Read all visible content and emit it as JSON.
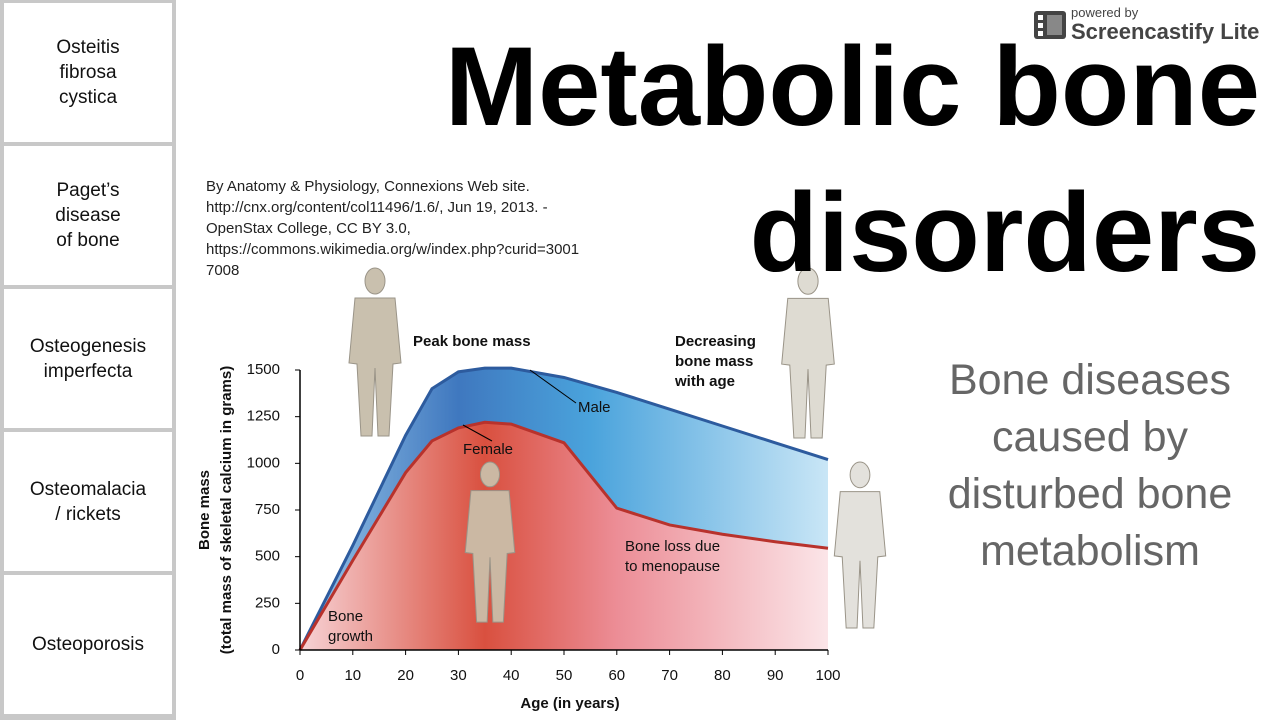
{
  "sidebar": {
    "items": [
      [
        "Osteitis",
        "fibrosa",
        "cystica"
      ],
      [
        "Paget’s",
        "disease",
        "of bone"
      ],
      [
        "Osteogenesis",
        "imperfecta"
      ],
      [
        "Osteomalacia",
        "/ rickets"
      ],
      [
        "Osteoporosis"
      ]
    ]
  },
  "watermark": {
    "small": "powered by",
    "brand": "Screencastify Lite"
  },
  "title": [
    "Metabolic bone",
    "disorders"
  ],
  "attribution": [
    "By Anatomy & Physiology, Connexions Web site.",
    "http://cnx.org/content/col11496/1.6/, Jun 19, 2013. -",
    "OpenStax College, CC BY 3.0,",
    "https://commons.wikimedia.org/w/index.php?curid=3001",
    "7008"
  ],
  "subtitle": [
    "Bone diseases",
    "caused by",
    "disturbed bone",
    "metabolism"
  ],
  "chart_data": {
    "type": "area",
    "x_label": "Age (in years)",
    "y_label": [
      "Bone mass",
      "(total mass of skeletal calcium in grams)"
    ],
    "annotations": {
      "peak": "Peak bone mass",
      "decreasing": [
        "Decreasing",
        "bone mass",
        "with age"
      ],
      "menopause": [
        "Bone loss due",
        "to menopause"
      ],
      "growth": [
        "Bone",
        "growth"
      ]
    },
    "x": [
      0,
      10,
      20,
      25,
      30,
      35,
      40,
      50,
      60,
      70,
      80,
      90,
      100
    ],
    "series": [
      {
        "name": "Male",
        "color": "#2d5b9e",
        "values": [
          0,
          560,
          1150,
          1400,
          1490,
          1510,
          1510,
          1460,
          1380,
          1290,
          1200,
          1110,
          1020
        ]
      },
      {
        "name": "Female",
        "color": "#b8322c",
        "values": [
          0,
          480,
          950,
          1120,
          1190,
          1220,
          1210,
          1110,
          760,
          670,
          620,
          580,
          545
        ]
      }
    ],
    "xlim": [
      0,
      100
    ],
    "xticks": [
      0,
      10,
      20,
      30,
      40,
      50,
      60,
      70,
      80,
      90,
      100
    ],
    "ylim": [
      0,
      1500
    ],
    "yticks": [
      0,
      250,
      500,
      750,
      1000,
      1250,
      1500
    ]
  }
}
